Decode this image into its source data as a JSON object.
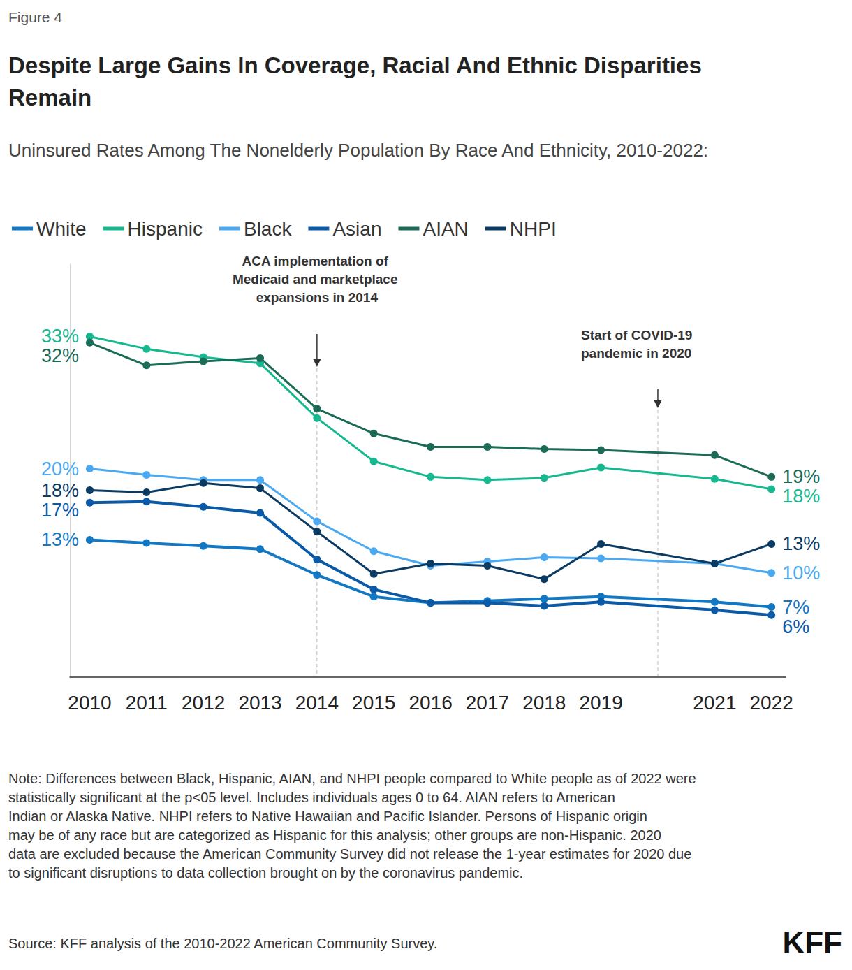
{
  "figure_label": "Figure 4",
  "chart_data": {
    "type": "line",
    "title": "Despite Large Gains In Coverage, Racial And Ethnic Disparities Remain",
    "subtitle": "Uninsured Rates Among The Nonelderly Population By Race And Ethnicity, 2010-2022:",
    "x": [
      2010,
      2011,
      2012,
      2013,
      2014,
      2015,
      2016,
      2017,
      2018,
      2019,
      2021,
      2022
    ],
    "xlim": [
      2009.65,
      2022.25
    ],
    "xticks": [
      2010,
      2011,
      2012,
      2013,
      2014,
      2015,
      2016,
      2017,
      2018,
      2019,
      2021,
      2022
    ],
    "ylim": [
      0,
      40
    ],
    "grid": false,
    "tick_labels": "x",
    "legend": "top-left",
    "marker": "circle",
    "series": [
      {
        "name": "White",
        "color": "#1278c4",
        "values": [
          13.3,
          13.0,
          12.7,
          12.4,
          9.9,
          7.8,
          7.2,
          7.4,
          7.6,
          7.8,
          7.3,
          6.8
        ],
        "value_labels": [
          "13%",
          null,
          null,
          null,
          null,
          null,
          null,
          null,
          null,
          null,
          null,
          "7%"
        ]
      },
      {
        "name": "Hispanic",
        "color": "#17b890",
        "values": [
          33.0,
          31.8,
          31.0,
          30.4,
          25.1,
          20.9,
          19.4,
          19.1,
          19.3,
          20.3,
          19.2,
          18.2
        ],
        "value_labels": [
          "33%",
          null,
          null,
          null,
          null,
          null,
          null,
          null,
          null,
          null,
          null,
          "18%"
        ]
      },
      {
        "name": "Black",
        "color": "#4aa9f0",
        "values": [
          20.2,
          19.6,
          19.1,
          19.1,
          15.1,
          12.2,
          10.8,
          11.2,
          11.6,
          11.5,
          11.0,
          10.1
        ],
        "value_labels": [
          "20%",
          null,
          null,
          null,
          null,
          null,
          null,
          null,
          null,
          null,
          null,
          "10%"
        ]
      },
      {
        "name": "Asian",
        "color": "#0a5aa8",
        "values": [
          16.9,
          17.0,
          16.5,
          15.9,
          11.4,
          8.5,
          7.2,
          7.2,
          6.9,
          7.3,
          6.5,
          6.0
        ],
        "value_labels": [
          "17%",
          null,
          null,
          null,
          null,
          null,
          null,
          null,
          null,
          null,
          null,
          "6%"
        ]
      },
      {
        "name": "AIAN",
        "color": "#1b6b57",
        "values": [
          32.4,
          30.2,
          30.6,
          30.9,
          26.0,
          23.6,
          22.3,
          22.3,
          22.1,
          22.0,
          21.5,
          19.4
        ],
        "value_labels": [
          "32%",
          null,
          null,
          null,
          null,
          null,
          null,
          null,
          null,
          null,
          null,
          "19%"
        ]
      },
      {
        "name": "NHPI",
        "color": "#0b3a63",
        "values": [
          18.1,
          17.9,
          18.8,
          18.3,
          14.1,
          10.0,
          11.0,
          10.8,
          9.5,
          12.9,
          11.0,
          12.9
        ],
        "value_labels": [
          "18%",
          null,
          null,
          null,
          null,
          null,
          null,
          null,
          null,
          null,
          null,
          "13%"
        ]
      }
    ],
    "annotations": [
      {
        "text": "ACA implementation of Medicaid and marketplace expansions in 2014",
        "x": 2014
      },
      {
        "text": "Start of COVID-19 pandemic in 2020",
        "x": 2020
      }
    ]
  },
  "note": "Note: Differences between Black, Hispanic, AIAN, and NHPI people compared to White people as of 2022 were statistically significant at the p<05 level. Includes individuals ages 0 to 64. AIAN refers to American Indian or Alaska Native. NHPI refers to Native Hawaiian and Pacific Islander. Persons of Hispanic origin may be of any race but are categorized as Hispanic for this analysis; other groups are non-Hispanic. 2020 data are excluded because the American Community Survey did not release the 1-year estimates for 2020 due to significant disruptions to data collection brought on by the coronavirus pandemic.",
  "source": "Source: KFF analysis of the 2010-2022 American Community Survey.",
  "logo": "KFF"
}
